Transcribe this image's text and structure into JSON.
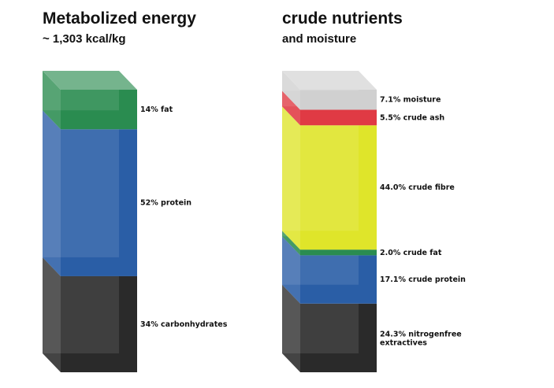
{
  "chart_data": [
    {
      "type": "bar",
      "stacked": true,
      "title": "Metabolized energy",
      "subtitle": "~ 1,303 kcal/kg",
      "unit": "%",
      "segments": [
        {
          "label": "34% carbonhydrates",
          "value": 34,
          "color": "#2a2a2a"
        },
        {
          "label": "52% protein",
          "value": 52,
          "color": "#2a5ea6"
        },
        {
          "label": "14% fat",
          "value": 14,
          "color": "#2a8c50"
        }
      ]
    },
    {
      "type": "bar",
      "stacked": true,
      "title": "crude nutrients",
      "subtitle": "and moisture",
      "unit": "%",
      "segments": [
        {
          "label": "24.3% nitrogenfree extractives",
          "value": 24.3,
          "color": "#2a2a2a"
        },
        {
          "label": "17.1% crude protein",
          "value": 17.1,
          "color": "#2a5ea6"
        },
        {
          "label": "2.0% crude fat",
          "value": 2.0,
          "color": "#2a8c50"
        },
        {
          "label": "44.0% crude fibre",
          "value": 44.0,
          "color": "#dfe52a"
        },
        {
          "label": "5.5% crude ash",
          "value": 5.5,
          "color": "#e03a44"
        },
        {
          "label": "7.1% moisture",
          "value": 7.1,
          "color": "#d0d0d0"
        }
      ]
    }
  ]
}
